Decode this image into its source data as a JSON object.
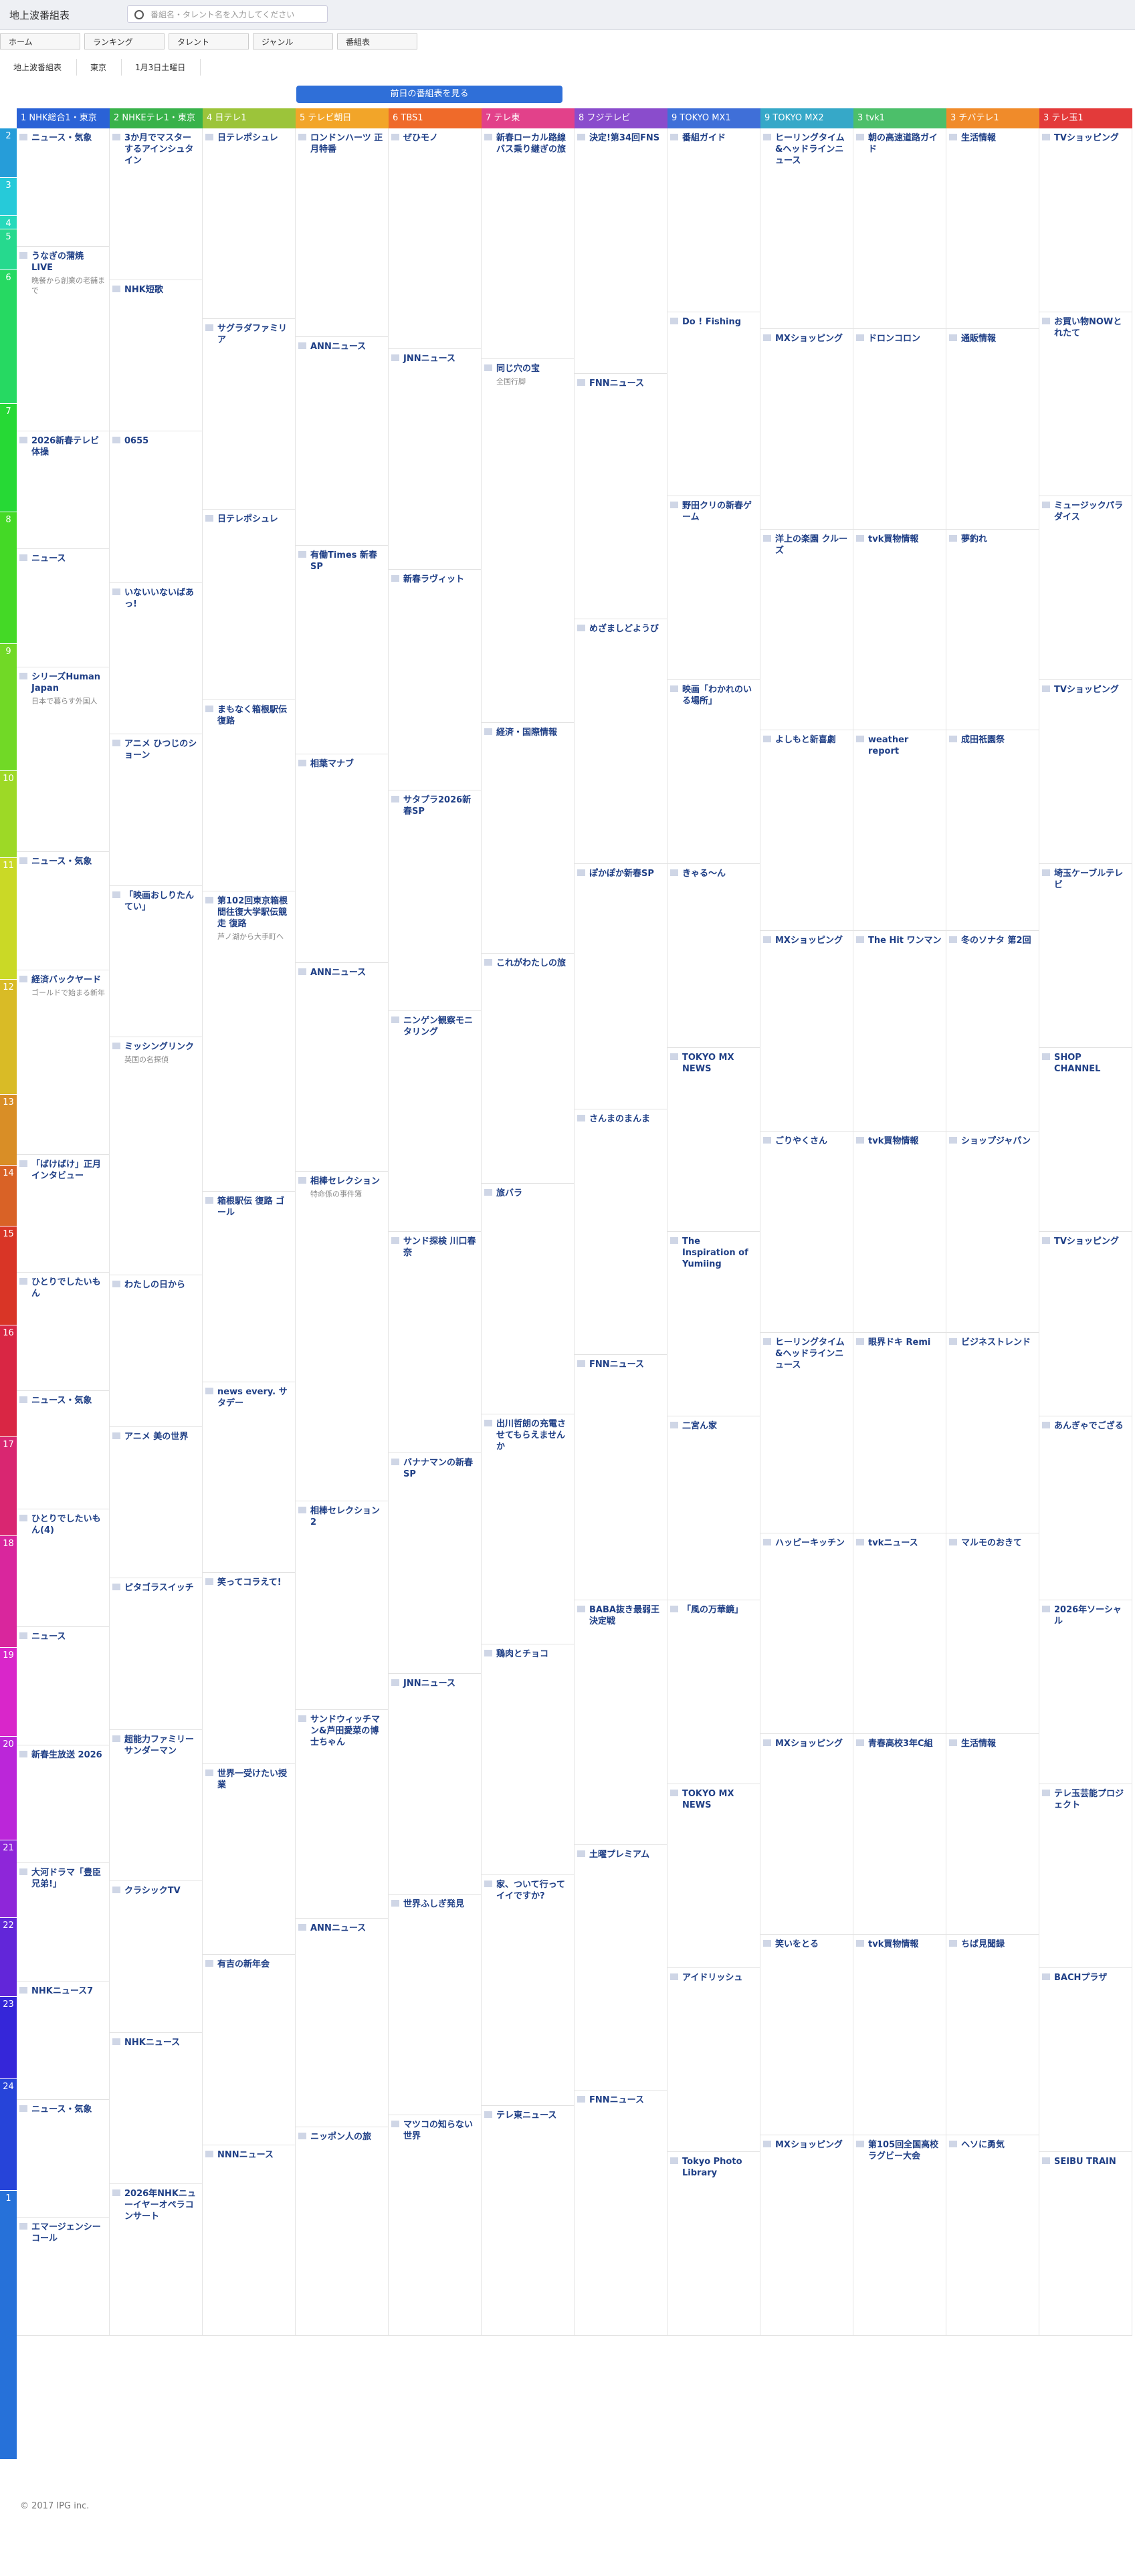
{
  "header": {
    "logo": "地上波番組表",
    "search_placeholder": "番組名・タレント名を入力してください"
  },
  "nav": [
    "ホーム",
    "ランキング",
    "タレント",
    "ジャンル",
    "番組表"
  ],
  "filters": [
    "地上波番組表",
    "東京",
    "1月3日土曜日"
  ],
  "button": "前日の番組表を見る",
  "hours": [
    "2",
    "3",
    "4",
    "5",
    "6",
    "7",
    "8",
    "9",
    "10",
    "11",
    "12",
    "13",
    "14",
    "15",
    "16",
    "17",
    "18",
    "19",
    "20",
    "21",
    "22",
    "23",
    "24",
    "1"
  ],
  "channels": [
    {
      "name": "1 NHK総合1・東京",
      "color": "#2a62d6",
      "programs": [
        {
          "title": "ニュース・気象"
        },
        {
          "title": "うなぎの蒲焼LIVE",
          "desc": "晩餐から創業の老舗まで"
        },
        {
          "title": "2026新春テレビ体操"
        },
        {
          "title": "ニュース"
        },
        {
          "title": "シリーズHuman Japan",
          "desc": "日本で暮らす外国人"
        },
        {
          "title": "ニュース・気象"
        },
        {
          "title": "経済バックヤード",
          "desc": "ゴールドで始まる新年"
        },
        {
          "title": "「ばけばけ」正月インタビュー"
        },
        {
          "title": "ひとりでしたいもん"
        },
        {
          "title": "ニュース・気象"
        },
        {
          "title": "ひとりでしたいもん(4)"
        },
        {
          "title": "ニュース"
        },
        {
          "title": "新春生放送 2026"
        },
        {
          "title": "大河ドラマ「豊臣兄弟!」"
        },
        {
          "title": "NHKニュース7"
        },
        {
          "title": "ニュース・気象"
        },
        {
          "title": "エマージェンシーコール"
        }
      ]
    },
    {
      "name": "2 NHKEテレ1・東京",
      "color": "#38b24a",
      "programs": [
        {
          "title": "3か月でマスターするアインシュタイン"
        },
        {
          "title": "NHK短歌"
        },
        {
          "title": "0655"
        },
        {
          "title": "いないいないばあっ!"
        },
        {
          "title": "アニメ ひつじのショーン"
        },
        {
          "title": "「映画おしりたんてい」"
        },
        {
          "title": "ミッシングリンク",
          "desc": "英国の名探偵"
        },
        {
          "title": "わたしの日から"
        },
        {
          "title": "アニメ 美の世界"
        },
        {
          "title": "ピタゴラスイッチ"
        },
        {
          "title": "超能力ファミリーサンダーマン"
        },
        {
          "title": "クラシックTV"
        },
        {
          "title": "NHKニュース"
        },
        {
          "title": "2026年NHKニューイヤーオペラコンサート"
        }
      ]
    },
    {
      "name": "4 日テレ1",
      "color": "#9cc43a",
      "programs": [
        {
          "title": "日テレポシュレ"
        },
        {
          "title": "サグラダファミリア"
        },
        {
          "title": "日テレポシュレ"
        },
        {
          "title": "まもなく箱根駅伝 復路"
        },
        {
          "title": "第102回東京箱根間往復大学駅伝競走 復路",
          "desc": "芦ノ湖から大手町へ"
        },
        {
          "title": "箱根駅伝 復路 ゴール"
        },
        {
          "title": "news every. サタデー"
        },
        {
          "title": "笑ってコラえて!"
        },
        {
          "title": "世界一受けたい授業"
        },
        {
          "title": "有吉の新年会"
        },
        {
          "title": "NNNニュース"
        }
      ]
    },
    {
      "name": "5 テレビ朝日",
      "color": "#f2a529",
      "programs": [
        {
          "title": "ロンドンハーツ 正月特番"
        },
        {
          "title": "ANNニュース"
        },
        {
          "title": "有働Times 新春SP"
        },
        {
          "title": "相葉マナブ"
        },
        {
          "title": "ANNニュース"
        },
        {
          "title": "相棒セレクション",
          "desc": "特命係の事件簿"
        },
        {
          "title": "相棒セレクション2"
        },
        {
          "title": "サンドウィッチマン&芦田愛菜の博士ちゃん"
        },
        {
          "title": "ANNニュース"
        },
        {
          "title": "ニッポン人の旅"
        }
      ]
    },
    {
      "name": "6 TBS1",
      "color": "#ef6a2a",
      "programs": [
        {
          "title": "ぜひモノ"
        },
        {
          "title": "JNNニュース"
        },
        {
          "title": "新春ラヴィット"
        },
        {
          "title": "サタプラ2026新春SP"
        },
        {
          "title": "ニンゲン観察モニタリング"
        },
        {
          "title": "サンド探検 川口春奈"
        },
        {
          "title": "バナナマンの新春SP"
        },
        {
          "title": "JNNニュース"
        },
        {
          "title": "世界ふしぎ発見"
        },
        {
          "title": "マツコの知らない世界"
        }
      ]
    },
    {
      "name": "7 テレ東",
      "color": "#e2418a",
      "programs": [
        {
          "title": "新春ローカル路線バス乗り継ぎの旅"
        },
        {
          "title": "同じ穴の宝",
          "desc": "全国行脚"
        },
        {
          "title": "経済・国際情報"
        },
        {
          "title": "これがわたしの旅"
        },
        {
          "title": "旅バラ"
        },
        {
          "title": "出川哲朗の充電させてもらえませんか"
        },
        {
          "title": "鶏肉とチョコ"
        },
        {
          "title": "家、ついて行ってイイですか?"
        },
        {
          "title": "テレ東ニュース"
        }
      ]
    },
    {
      "name": "8 フジテレビ",
      "color": "#8a4ccc",
      "programs": [
        {
          "title": "決定!第34回FNS"
        },
        {
          "title": "FNNニュース"
        },
        {
          "title": "めざましどようび"
        },
        {
          "title": "ぽかぽか新春SP"
        },
        {
          "title": "さんまのまんま"
        },
        {
          "title": "FNNニュース"
        },
        {
          "title": "BABA抜き最弱王決定戦"
        },
        {
          "title": "土曜プレミアム"
        },
        {
          "title": "FNNニュース"
        }
      ]
    },
    {
      "name": "9 TOKYO MX1",
      "color": "#3f6fd8",
      "programs": [
        {
          "title": "番組ガイド"
        },
        {
          "title": "Do ! Fishing"
        },
        {
          "title": "野田クリの新春ゲーム"
        },
        {
          "title": "映画「わかれのいる場所」"
        },
        {
          "title": "きゃる〜ん"
        },
        {
          "title": "TOKYO MX NEWS"
        },
        {
          "title": "The Inspiration of Yumiing"
        },
        {
          "title": "二宮ん家"
        },
        {
          "title": "「風の万華鏡」"
        },
        {
          "title": "TOKYO MX NEWS"
        },
        {
          "title": "アイドリッシュ"
        },
        {
          "title": "Tokyo Photo Library"
        }
      ]
    },
    {
      "name": "9 TOKYO MX2",
      "color": "#36a8c8",
      "programs": [
        {
          "title": "ヒーリングタイム&ヘッドラインニュース"
        },
        {
          "title": "MXショッピング"
        },
        {
          "title": "洋上の楽園 クルーズ"
        },
        {
          "title": "よしもと新喜劇"
        },
        {
          "title": "MXショッピング"
        },
        {
          "title": "ごりやくさん"
        },
        {
          "title": "ヒーリングタイム&ヘッドラインニュース"
        },
        {
          "title": "ハッピーキッチン"
        },
        {
          "title": "MXショッピング"
        },
        {
          "title": "笑いをとる"
        },
        {
          "title": "MXショッピング"
        }
      ]
    },
    {
      "name": "3 tvk1",
      "color": "#4cbf6a",
      "programs": [
        {
          "title": "朝の高速道路ガイド"
        },
        {
          "title": "ドロンコロン"
        },
        {
          "title": "tvk買物情報"
        },
        {
          "title": "weather report"
        },
        {
          "title": "The Hit ワンマン"
        },
        {
          "title": "tvk買物情報"
        },
        {
          "title": "眼界ドキ Remi"
        },
        {
          "title": "tvkニュース"
        },
        {
          "title": "青春高校3年C組"
        },
        {
          "title": "tvk買物情報"
        },
        {
          "title": "第105回全国高校ラグビー大会"
        }
      ]
    },
    {
      "name": "3 チバテレ1",
      "color": "#f08b2a",
      "programs": [
        {
          "title": "生活情報"
        },
        {
          "title": "通販情報"
        },
        {
          "title": "夢釣れ"
        },
        {
          "title": "成田祇園祭"
        },
        {
          "title": "冬のソナタ 第2回"
        },
        {
          "title": "ショップジャパン"
        },
        {
          "title": "ビジネストレンド"
        },
        {
          "title": "マルモのおきて"
        },
        {
          "title": "生活情報"
        },
        {
          "title": "ちば見聞録"
        },
        {
          "title": "ヘソに勇気"
        }
      ]
    },
    {
      "name": "3 テレ玉1",
      "color": "#e33a3a",
      "programs": [
        {
          "title": "TVショッピング"
        },
        {
          "title": "お買い物NOWとれたて"
        },
        {
          "title": "ミュージックパラダイス"
        },
        {
          "title": "TVショッピング"
        },
        {
          "title": "埼玉ケーブルテレビ"
        },
        {
          "title": "SHOP CHANNEL"
        },
        {
          "title": "TVショッピング"
        },
        {
          "title": "あんぎゃでござる"
        },
        {
          "title": "2026年ソーシャル"
        },
        {
          "title": "テレ玉芸能プロジェクト"
        },
        {
          "title": "BACHプラザ"
        },
        {
          "title": "SEIBU TRAIN"
        }
      ]
    }
  ],
  "footer": "© 2017 IPG inc."
}
